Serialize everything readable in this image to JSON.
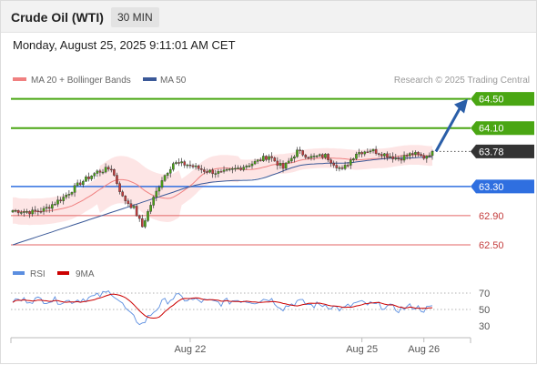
{
  "header": {
    "title": "Crude Oil (WTI)",
    "timeframe": "30 MIN"
  },
  "datetime": "Monday, August 25, 2025 9:11:01 AM CET",
  "legend": {
    "bollinger": "MA 20 + Bollinger Bands",
    "ma50": "MA 50",
    "source": "Research © 2025 Trading Central"
  },
  "rsi_legend": {
    "rsi": "RSI",
    "ma9": "9MA"
  },
  "colors": {
    "green_level": "#4aa613",
    "blue_level": "#2f6fe0",
    "red_level": "#e36666",
    "current_price": "#333333",
    "bollinger_fill": "#fde0e0",
    "ma20": "#f08080",
    "ma50": "#3b5998",
    "arrow": "#2a5ea8",
    "candle_up": "#4aa613",
    "candle_down": "#c43c3c",
    "rsi": "#5b8ee0",
    "rsi_ma": "#cc0000"
  },
  "chart_data": {
    "type": "candlestick",
    "instrument": "Crude Oil (WTI)",
    "timeframe": "30 MIN",
    "ylim": [
      62.35,
      64.62
    ],
    "levels": [
      {
        "value": 64.5,
        "label": "64.50",
        "kind": "resistance",
        "color": "green"
      },
      {
        "value": 64.1,
        "label": "64.10",
        "kind": "resistance",
        "color": "green"
      },
      {
        "value": 63.78,
        "label": "63.78",
        "kind": "current",
        "color": "dark"
      },
      {
        "value": 63.3,
        "label": "63.30",
        "kind": "pivot",
        "color": "blue"
      },
      {
        "value": 62.9,
        "label": "62.90",
        "kind": "support",
        "color": "red"
      },
      {
        "value": 62.5,
        "label": "62.50",
        "kind": "support",
        "color": "red"
      }
    ],
    "x_ticks": [
      {
        "label": "Aug 22",
        "bar": 63
      },
      {
        "label": "Aug 25",
        "bar": 124
      },
      {
        "label": "Aug 26",
        "bar": 146
      }
    ],
    "bar_count": 150,
    "anchors": [
      [
        0,
        62.97
      ],
      [
        7,
        62.95
      ],
      [
        11,
        62.98
      ],
      [
        18,
        63.15
      ],
      [
        24,
        63.35
      ],
      [
        30,
        63.5
      ],
      [
        35,
        63.55
      ],
      [
        39,
        63.15
      ],
      [
        43,
        63.0
      ],
      [
        46,
        62.75
      ],
      [
        49,
        63.05
      ],
      [
        53,
        63.4
      ],
      [
        57,
        63.62
      ],
      [
        62,
        63.6
      ],
      [
        68,
        63.52
      ],
      [
        74,
        63.48
      ],
      [
        80,
        63.55
      ],
      [
        86,
        63.63
      ],
      [
        91,
        63.72
      ],
      [
        96,
        63.55
      ],
      [
        101,
        63.78
      ],
      [
        106,
        63.7
      ],
      [
        111,
        63.72
      ],
      [
        117,
        63.52
      ],
      [
        122,
        63.76
      ],
      [
        127,
        63.8
      ],
      [
        132,
        63.74
      ],
      [
        137,
        63.68
      ],
      [
        142,
        63.75
      ],
      [
        146,
        63.7
      ],
      [
        149,
        63.78
      ]
    ],
    "series": [
      {
        "name": "MA 20 + Bollinger Bands",
        "kind": "ma20_bands",
        "band_halfwidth": 0.18
      },
      {
        "name": "MA 50",
        "kind": "ma50"
      }
    ],
    "projection": {
      "from_bar": 149,
      "from_price": 63.78,
      "to_price": 64.5
    },
    "rsi": {
      "ylim": [
        20,
        80
      ],
      "ticks": [
        70,
        50,
        30
      ],
      "guide_lines": [
        70,
        50
      ],
      "anchors": [
        [
          0,
          61
        ],
        [
          10,
          62
        ],
        [
          20,
          60
        ],
        [
          30,
          66
        ],
        [
          35,
          72
        ],
        [
          38,
          60
        ],
        [
          42,
          42
        ],
        [
          46,
          32
        ],
        [
          49,
          44
        ],
        [
          53,
          58
        ],
        [
          58,
          66
        ],
        [
          62,
          62
        ],
        [
          68,
          60
        ],
        [
          74,
          58
        ],
        [
          80,
          62
        ],
        [
          86,
          60
        ],
        [
          91,
          64
        ],
        [
          96,
          52
        ],
        [
          101,
          60
        ],
        [
          106,
          55
        ],
        [
          111,
          56
        ],
        [
          117,
          50
        ],
        [
          122,
          58
        ],
        [
          127,
          56
        ],
        [
          132,
          54
        ],
        [
          137,
          50
        ],
        [
          142,
          54
        ],
        [
          146,
          50
        ],
        [
          149,
          52
        ]
      ]
    }
  }
}
